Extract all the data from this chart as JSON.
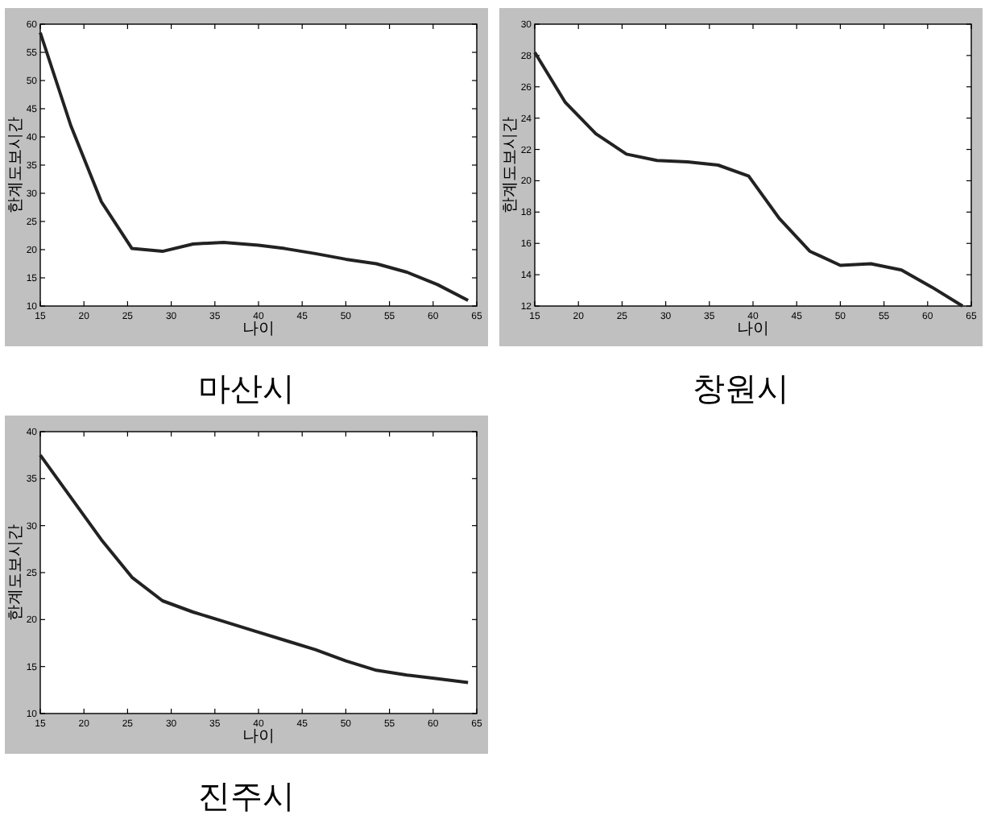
{
  "chart_data": [
    {
      "type": "line",
      "title": "마산시",
      "xlabel": "나이",
      "ylabel": "한계도보시간",
      "x": [
        15,
        18.5,
        22,
        25.5,
        29,
        32.5,
        36,
        40,
        43,
        46.5,
        50,
        53.5,
        57,
        60.5,
        64
      ],
      "series": [
        {
          "color": "#222222",
          "values": [
            58.5,
            42,
            28.5,
            20.2,
            19.7,
            21,
            21.3,
            20.8,
            20.2,
            19.3,
            18.3,
            17.5,
            16,
            13.8,
            11
          ]
        }
      ],
      "xlim": [
        15,
        65
      ],
      "xticks": [
        15,
        20,
        25,
        30,
        35,
        40,
        45,
        50,
        55,
        60,
        65
      ],
      "ylim": [
        10,
        60
      ],
      "yticks": [
        10,
        15,
        20,
        25,
        30,
        35,
        40,
        45,
        50,
        55,
        60
      ],
      "grid": false
    },
    {
      "type": "line",
      "title": "창원시",
      "xlabel": "나이",
      "ylabel": "한계도보시간",
      "x": [
        15,
        18.5,
        22,
        25.5,
        29,
        32.5,
        36,
        39.5,
        43,
        46.5,
        50,
        53.5,
        57,
        60.5,
        64
      ],
      "series": [
        {
          "color": "#222222",
          "values": [
            28.2,
            25,
            23,
            21.7,
            21.3,
            21.2,
            21,
            20.3,
            17.6,
            15.5,
            14.6,
            14.7,
            14.3,
            13.2,
            12
          ]
        }
      ],
      "xlim": [
        15,
        65
      ],
      "xticks": [
        15,
        20,
        25,
        30,
        35,
        40,
        45,
        50,
        55,
        60,
        65
      ],
      "ylim": [
        12,
        30
      ],
      "yticks": [
        12,
        14,
        16,
        18,
        20,
        22,
        24,
        26,
        28,
        30
      ],
      "grid": false
    },
    {
      "type": "line",
      "title": "진주시",
      "xlabel": "나이",
      "ylabel": "한계도보시간",
      "x": [
        15,
        18.5,
        22,
        25.5,
        29,
        32.5,
        36,
        39.5,
        43,
        46.5,
        50,
        53.5,
        57,
        60.5,
        64
      ],
      "series": [
        {
          "color": "#222222",
          "values": [
            37.5,
            33,
            28.5,
            24.5,
            22,
            20.8,
            19.8,
            18.8,
            17.8,
            16.8,
            15.6,
            14.6,
            14.1,
            13.7,
            13.3
          ]
        }
      ],
      "xlim": [
        15,
        65
      ],
      "xticks": [
        15,
        20,
        25,
        30,
        35,
        40,
        45,
        50,
        55,
        60,
        65
      ],
      "ylim": [
        10,
        40
      ],
      "yticks": [
        10,
        15,
        20,
        25,
        30,
        35,
        40
      ],
      "grid": false
    }
  ]
}
